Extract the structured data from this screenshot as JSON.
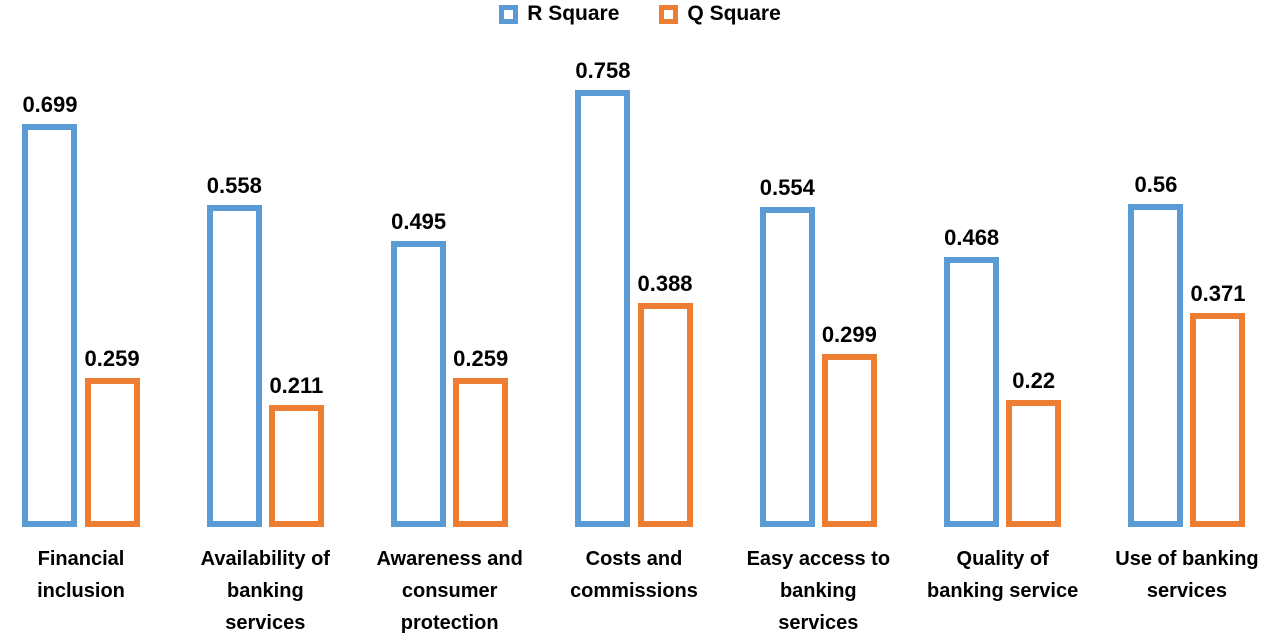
{
  "legend": {
    "items": [
      {
        "label": "R Square",
        "color": "#5B9BD5"
      },
      {
        "label": "Q Square",
        "color": "#ED7D31"
      }
    ]
  },
  "chart_data": {
    "type": "bar",
    "title": "",
    "xlabel": "",
    "ylabel": "",
    "grid": false,
    "legend_position": "top-center",
    "value_labels_visible": true,
    "bar_style": "hollow-outline",
    "background_color": "#ffffff",
    "text_color": "#000000",
    "ylim": [
      0,
      0.8
    ],
    "categories": [
      "Financial inclusion",
      "Availability of banking services",
      "Awareness and consumer protection",
      "Costs and commissions",
      "Easy access to banking services",
      "Quality of banking service",
      "Use of banking services"
    ],
    "category_lines": [
      [
        "Financial",
        "inclusion"
      ],
      [
        "Availability of",
        "banking",
        "services"
      ],
      [
        "Awareness and",
        "consumer",
        "protection"
      ],
      [
        "Costs and",
        "commissions"
      ],
      [
        "Easy access to",
        "banking",
        "services"
      ],
      [
        "Quality of",
        "banking service"
      ],
      [
        "Use of banking",
        "services"
      ]
    ],
    "series": [
      {
        "name": "R Square",
        "color": "#5B9BD5",
        "values": [
          0.699,
          0.558,
          0.495,
          0.758,
          0.554,
          0.468,
          0.56
        ]
      },
      {
        "name": "Q Square",
        "color": "#ED7D31",
        "values": [
          0.259,
          0.211,
          0.259,
          0.388,
          0.299,
          0.22,
          0.371
        ]
      }
    ]
  }
}
